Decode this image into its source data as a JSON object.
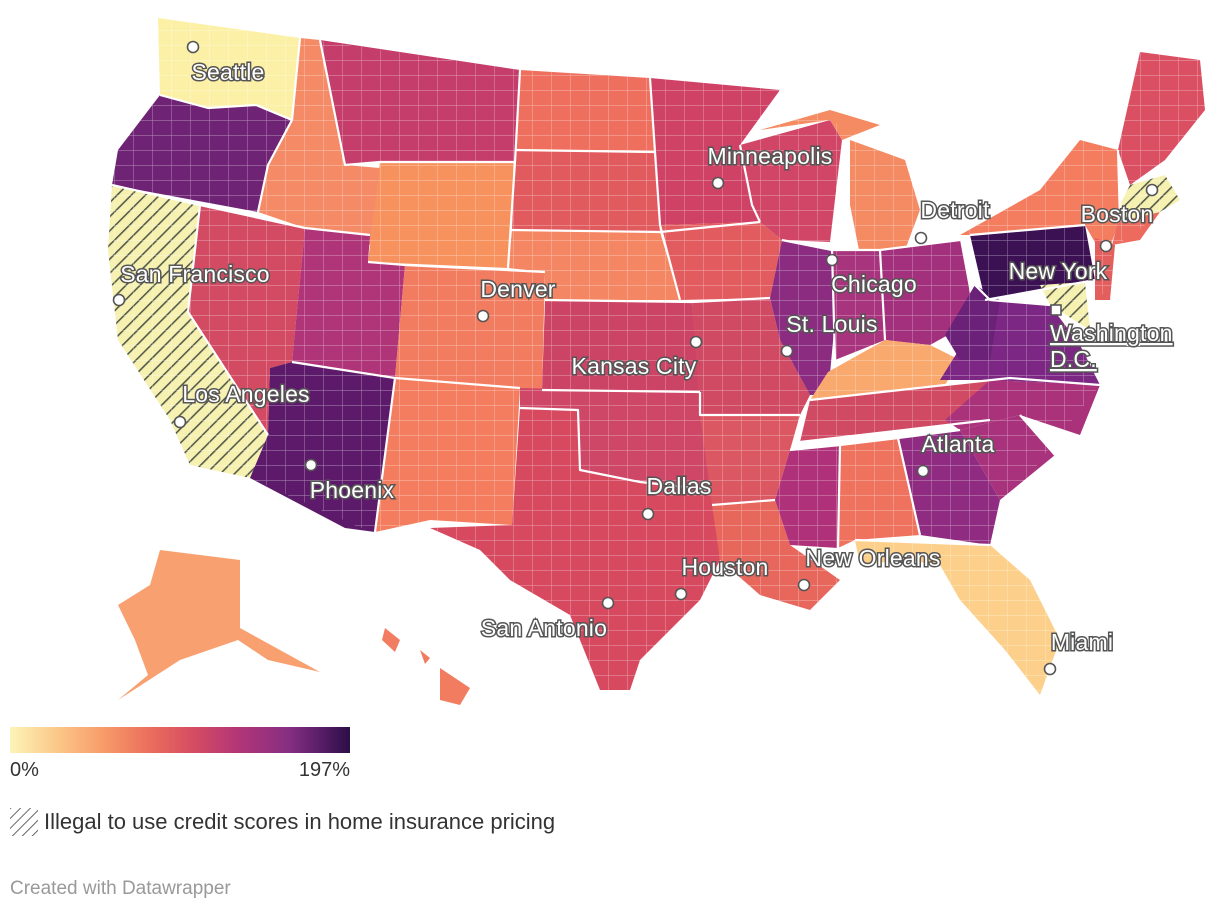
{
  "legend": {
    "min_label": "0%",
    "max_label": "197%",
    "colors": [
      "#fcf4b6",
      "#fbc789",
      "#f89d6a",
      "#ea6b5c",
      "#d34a63",
      "#b03478",
      "#862f82",
      "#4f1a62",
      "#2c0f45"
    ]
  },
  "hatch_legend": {
    "label": "Illegal to use credit scores in home insurance pricing",
    "hatched_states": [
      "California",
      "Massachusetts",
      "Maryland"
    ]
  },
  "footer": {
    "credit": "Created with Datawrapper"
  },
  "cities": [
    {
      "name": "Seattle"
    },
    {
      "name": "San Francisco"
    },
    {
      "name": "Los Angeles"
    },
    {
      "name": "Phoenix"
    },
    {
      "name": "Denver"
    },
    {
      "name": "Kansas City"
    },
    {
      "name": "Dallas"
    },
    {
      "name": "Houston"
    },
    {
      "name": "San Antonio"
    },
    {
      "name": "Minneapolis"
    },
    {
      "name": "Chicago"
    },
    {
      "name": "St. Louis"
    },
    {
      "name": "Detroit"
    },
    {
      "name": "Atlanta"
    },
    {
      "name": "New Orleans"
    },
    {
      "name": "Miami"
    },
    {
      "name": "Boston"
    },
    {
      "name": "New York"
    },
    {
      "name": "Washington D.C.",
      "lines": [
        "Washington",
        "D.C."
      ],
      "is_link": true
    }
  ]
}
